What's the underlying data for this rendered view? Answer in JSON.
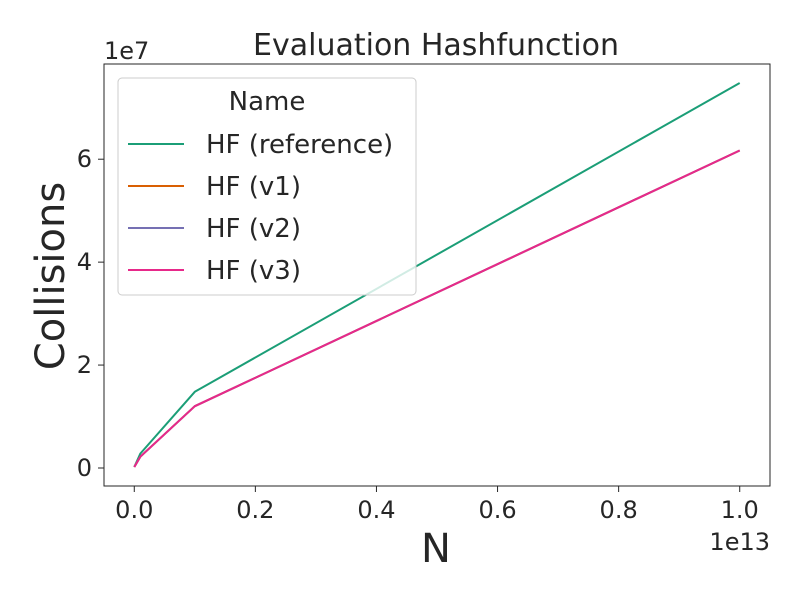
{
  "chart_data": {
    "type": "line",
    "title": "Evaluation Hashfunction",
    "xlabel": "N",
    "ylabel": "Collisions",
    "x_offset_label": "1e13",
    "y_offset_label": "1e7",
    "xlim": [
      -0.05,
      1.05
    ],
    "ylim": [
      -0.35,
      7.85
    ],
    "xticks": [
      0.0,
      0.2,
      0.4,
      0.6,
      0.8,
      1.0
    ],
    "xtick_labels": [
      "0.0",
      "0.2",
      "0.4",
      "0.6",
      "0.8",
      "1.0"
    ],
    "yticks": [
      0,
      2,
      4,
      6
    ],
    "ytick_labels": [
      "0",
      "2",
      "4",
      "6"
    ],
    "grid": false,
    "legend": {
      "title": "Name",
      "placement": "top-left"
    },
    "series": [
      {
        "name": "HF (reference)",
        "color": "#1b9e77",
        "x": [
          0.0,
          0.01,
          0.1,
          1.0
        ],
        "y": [
          0.02,
          0.28,
          1.48,
          7.48
        ]
      },
      {
        "name": "HF (v1)",
        "color": "#d95f02",
        "x": [
          0.0,
          0.01,
          0.1,
          1.0
        ],
        "y": [
          0.02,
          0.22,
          1.2,
          6.17
        ]
      },
      {
        "name": "HF (v2)",
        "color": "#7570b3",
        "x": [
          0.0,
          0.01,
          0.1,
          1.0
        ],
        "y": [
          0.02,
          0.22,
          1.2,
          6.17
        ]
      },
      {
        "name": "HF (v3)",
        "color": "#e7298a",
        "x": [
          0.0,
          0.01,
          0.1,
          1.0
        ],
        "y": [
          0.02,
          0.22,
          1.2,
          6.17
        ]
      }
    ]
  }
}
